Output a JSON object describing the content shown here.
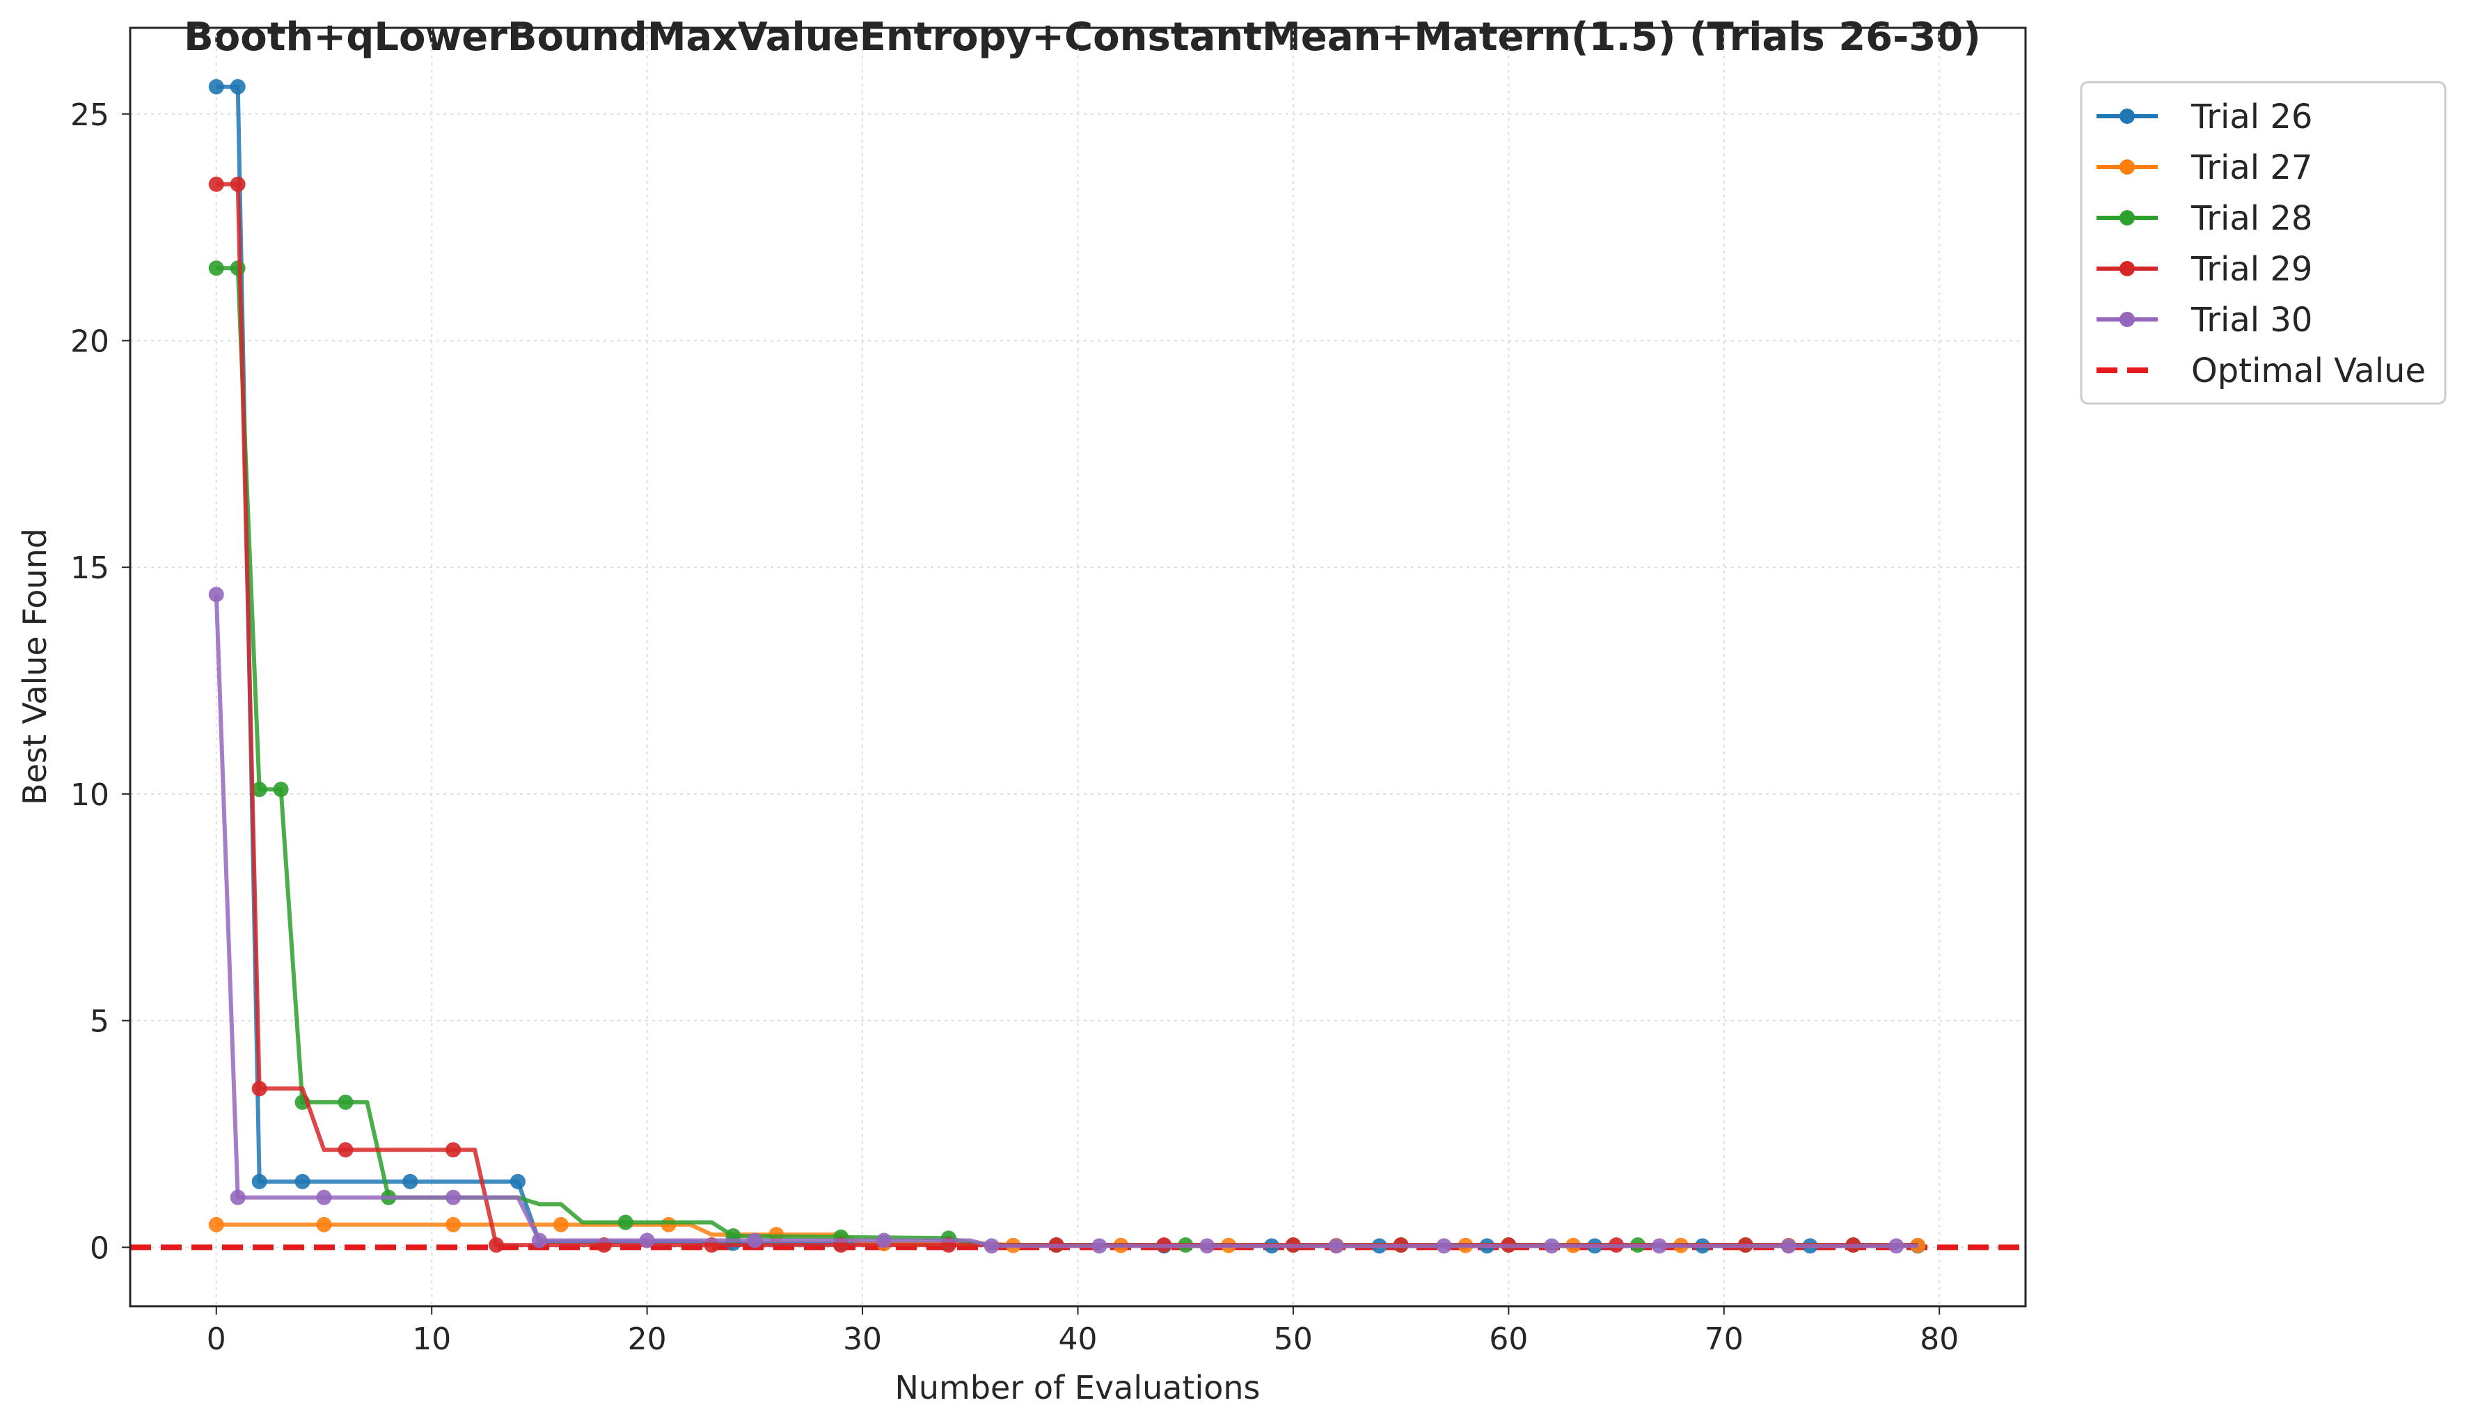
{
  "chart_data": {
    "type": "line",
    "title": "Booth+qLowerBoundMaxValueEntropy+ConstantMean+Matern(1.5) (Trials 26-30)",
    "xlabel": "Number of Evaluations",
    "ylabel": "Best Value Found",
    "xlim": [
      -4,
      84
    ],
    "ylim": [
      -1.3,
      26.9
    ],
    "xticks": [
      0,
      10,
      20,
      30,
      40,
      50,
      60,
      70,
      80
    ],
    "yticks": [
      0,
      5,
      10,
      15,
      20,
      25
    ],
    "grid": true,
    "legend_position": "outside-top-right",
    "optimal_value": 0,
    "optimal_label": "Optimal Value",
    "optimal_color": "#e41a1c",
    "series": [
      {
        "name": "Trial 26",
        "color": "#1f77b4",
        "points": [
          [
            0,
            25.6
          ],
          [
            1,
            25.6
          ],
          [
            2,
            1.45
          ],
          [
            14,
            1.45
          ],
          [
            15,
            0.12
          ],
          [
            22,
            0.12
          ],
          [
            23,
            0.09
          ],
          [
            35,
            0.09
          ],
          [
            36,
            0.05
          ],
          [
            43,
            0.05
          ],
          [
            44,
            0.03
          ],
          [
            79,
            0.03
          ]
        ],
        "markers": [
          0,
          1,
          2,
          4,
          9,
          14,
          24,
          29,
          34,
          39,
          44,
          49,
          54,
          59,
          64,
          69,
          74,
          79
        ]
      },
      {
        "name": "Trial 27",
        "color": "#ff7f0e",
        "points": [
          [
            0,
            0.5
          ],
          [
            22,
            0.5
          ],
          [
            23,
            0.28
          ],
          [
            29,
            0.28
          ],
          [
            30,
            0.08
          ],
          [
            36,
            0.08
          ],
          [
            37,
            0.04
          ],
          [
            79,
            0.04
          ]
        ],
        "markers": [
          0,
          5,
          11,
          16,
          21,
          26,
          31,
          37,
          42,
          47,
          52,
          58,
          63,
          68,
          73,
          79
        ]
      },
      {
        "name": "Trial 28",
        "color": "#2ca02c",
        "points": [
          [
            0,
            21.6
          ],
          [
            1,
            21.6
          ],
          [
            2,
            10.1
          ],
          [
            3,
            10.1
          ],
          [
            4,
            3.2
          ],
          [
            7,
            3.2
          ],
          [
            8,
            1.1
          ],
          [
            14,
            1.1
          ],
          [
            15,
            0.95
          ],
          [
            16,
            0.95
          ],
          [
            17,
            0.55
          ],
          [
            23,
            0.55
          ],
          [
            24,
            0.25
          ],
          [
            34,
            0.2
          ],
          [
            35,
            0.1
          ],
          [
            36,
            0.05
          ],
          [
            79,
            0.05
          ]
        ],
        "markers": [
          0,
          1,
          2,
          3,
          4,
          6,
          8,
          19,
          24,
          29,
          34,
          39,
          45,
          50,
          55,
          60,
          66,
          71,
          76
        ]
      },
      {
        "name": "Trial 29",
        "color": "#d62728",
        "points": [
          [
            0,
            23.45
          ],
          [
            1,
            23.45
          ],
          [
            2,
            3.5
          ],
          [
            4,
            3.5
          ],
          [
            5,
            2.15
          ],
          [
            12,
            2.15
          ],
          [
            13,
            0.05
          ],
          [
            79,
            0.05
          ]
        ],
        "markers": [
          0,
          1,
          2,
          6,
          11,
          13,
          18,
          23,
          29,
          34,
          39,
          44,
          50,
          55,
          60,
          65,
          71,
          76
        ]
      },
      {
        "name": "Trial 30",
        "color": "#9467bd",
        "points": [
          [
            0,
            14.4
          ],
          [
            1,
            1.1
          ],
          [
            14,
            1.1
          ],
          [
            15,
            0.15
          ],
          [
            35,
            0.15
          ],
          [
            36,
            0.03
          ],
          [
            79,
            0.03
          ]
        ],
        "markers": [
          0,
          1,
          5,
          11,
          15,
          20,
          25,
          31,
          36,
          41,
          46,
          52,
          57,
          62,
          67,
          73,
          78
        ]
      }
    ]
  }
}
